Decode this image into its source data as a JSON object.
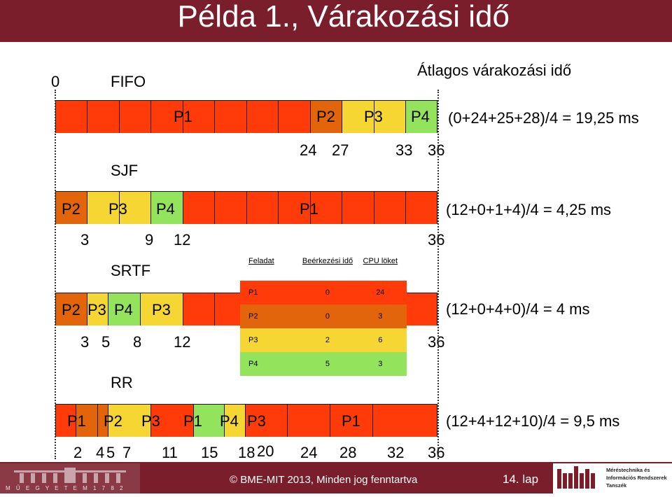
{
  "title": "Példa 1., Várakozási idő",
  "avg_heading": "Átlagos várakozási idő",
  "zero_label": "0",
  "colors": {
    "P1": "#ff3b0a",
    "P2": "#e2650c",
    "P3": "#f5d632",
    "P4": "#93e35c",
    "title_bg": "#7b1e2c"
  },
  "fifo": {
    "name": "FIFO",
    "bar_labels": [
      "P1",
      "P2",
      "P3",
      "P4"
    ],
    "ticks": [
      "24",
      "27",
      "33",
      "36"
    ],
    "formula": "(0+24+25+28)/4 = 19,25 ms"
  },
  "sjf": {
    "name": "SJF",
    "bar_labels": [
      "P2",
      "P3",
      "P4",
      "P1"
    ],
    "ticks": [
      "3",
      "9",
      "12",
      "36"
    ],
    "formula": "(12+0+1+4)/4 = 4,25 ms"
  },
  "srtf": {
    "name": "SRTF",
    "bar_labels": [
      "P2",
      "P3",
      "P4",
      "P3"
    ],
    "ticks": [
      "3",
      "5",
      "8",
      "12",
      "36"
    ],
    "formula": "(12+0+4+0)/4 = 4 ms"
  },
  "rr": {
    "name": "RR",
    "bar_labels": [
      "P1",
      "P2",
      "P3",
      "P1",
      "P4",
      "P3",
      "P1"
    ],
    "ticks": [
      "2",
      "4",
      "5",
      "7",
      "11",
      "15",
      "18",
      "20",
      "24",
      "28",
      "32",
      "36"
    ],
    "formula": "(12+4+12+10)/4 = 9,5 ms"
  },
  "table": {
    "headers": [
      "Feladat",
      "Beérkezési idő",
      "CPU löket"
    ],
    "rows": [
      {
        "name": "P1",
        "arrival": "0",
        "burst": "24"
      },
      {
        "name": "P2",
        "arrival": "0",
        "burst": "3"
      },
      {
        "name": "P3",
        "arrival": "2",
        "burst": "6"
      },
      {
        "name": "P4",
        "arrival": "5",
        "burst": "3"
      }
    ]
  },
  "footer": {
    "copyright": "© BME-MIT 2013, Minden jog fenntartva",
    "page": "14. lap",
    "logo_left": "M Ű E G Y E T E M   1 7 8 2",
    "logo_right_lines": [
      "Méréstechnika és",
      "Információs Rendszerek",
      "Tanszék"
    ]
  }
}
